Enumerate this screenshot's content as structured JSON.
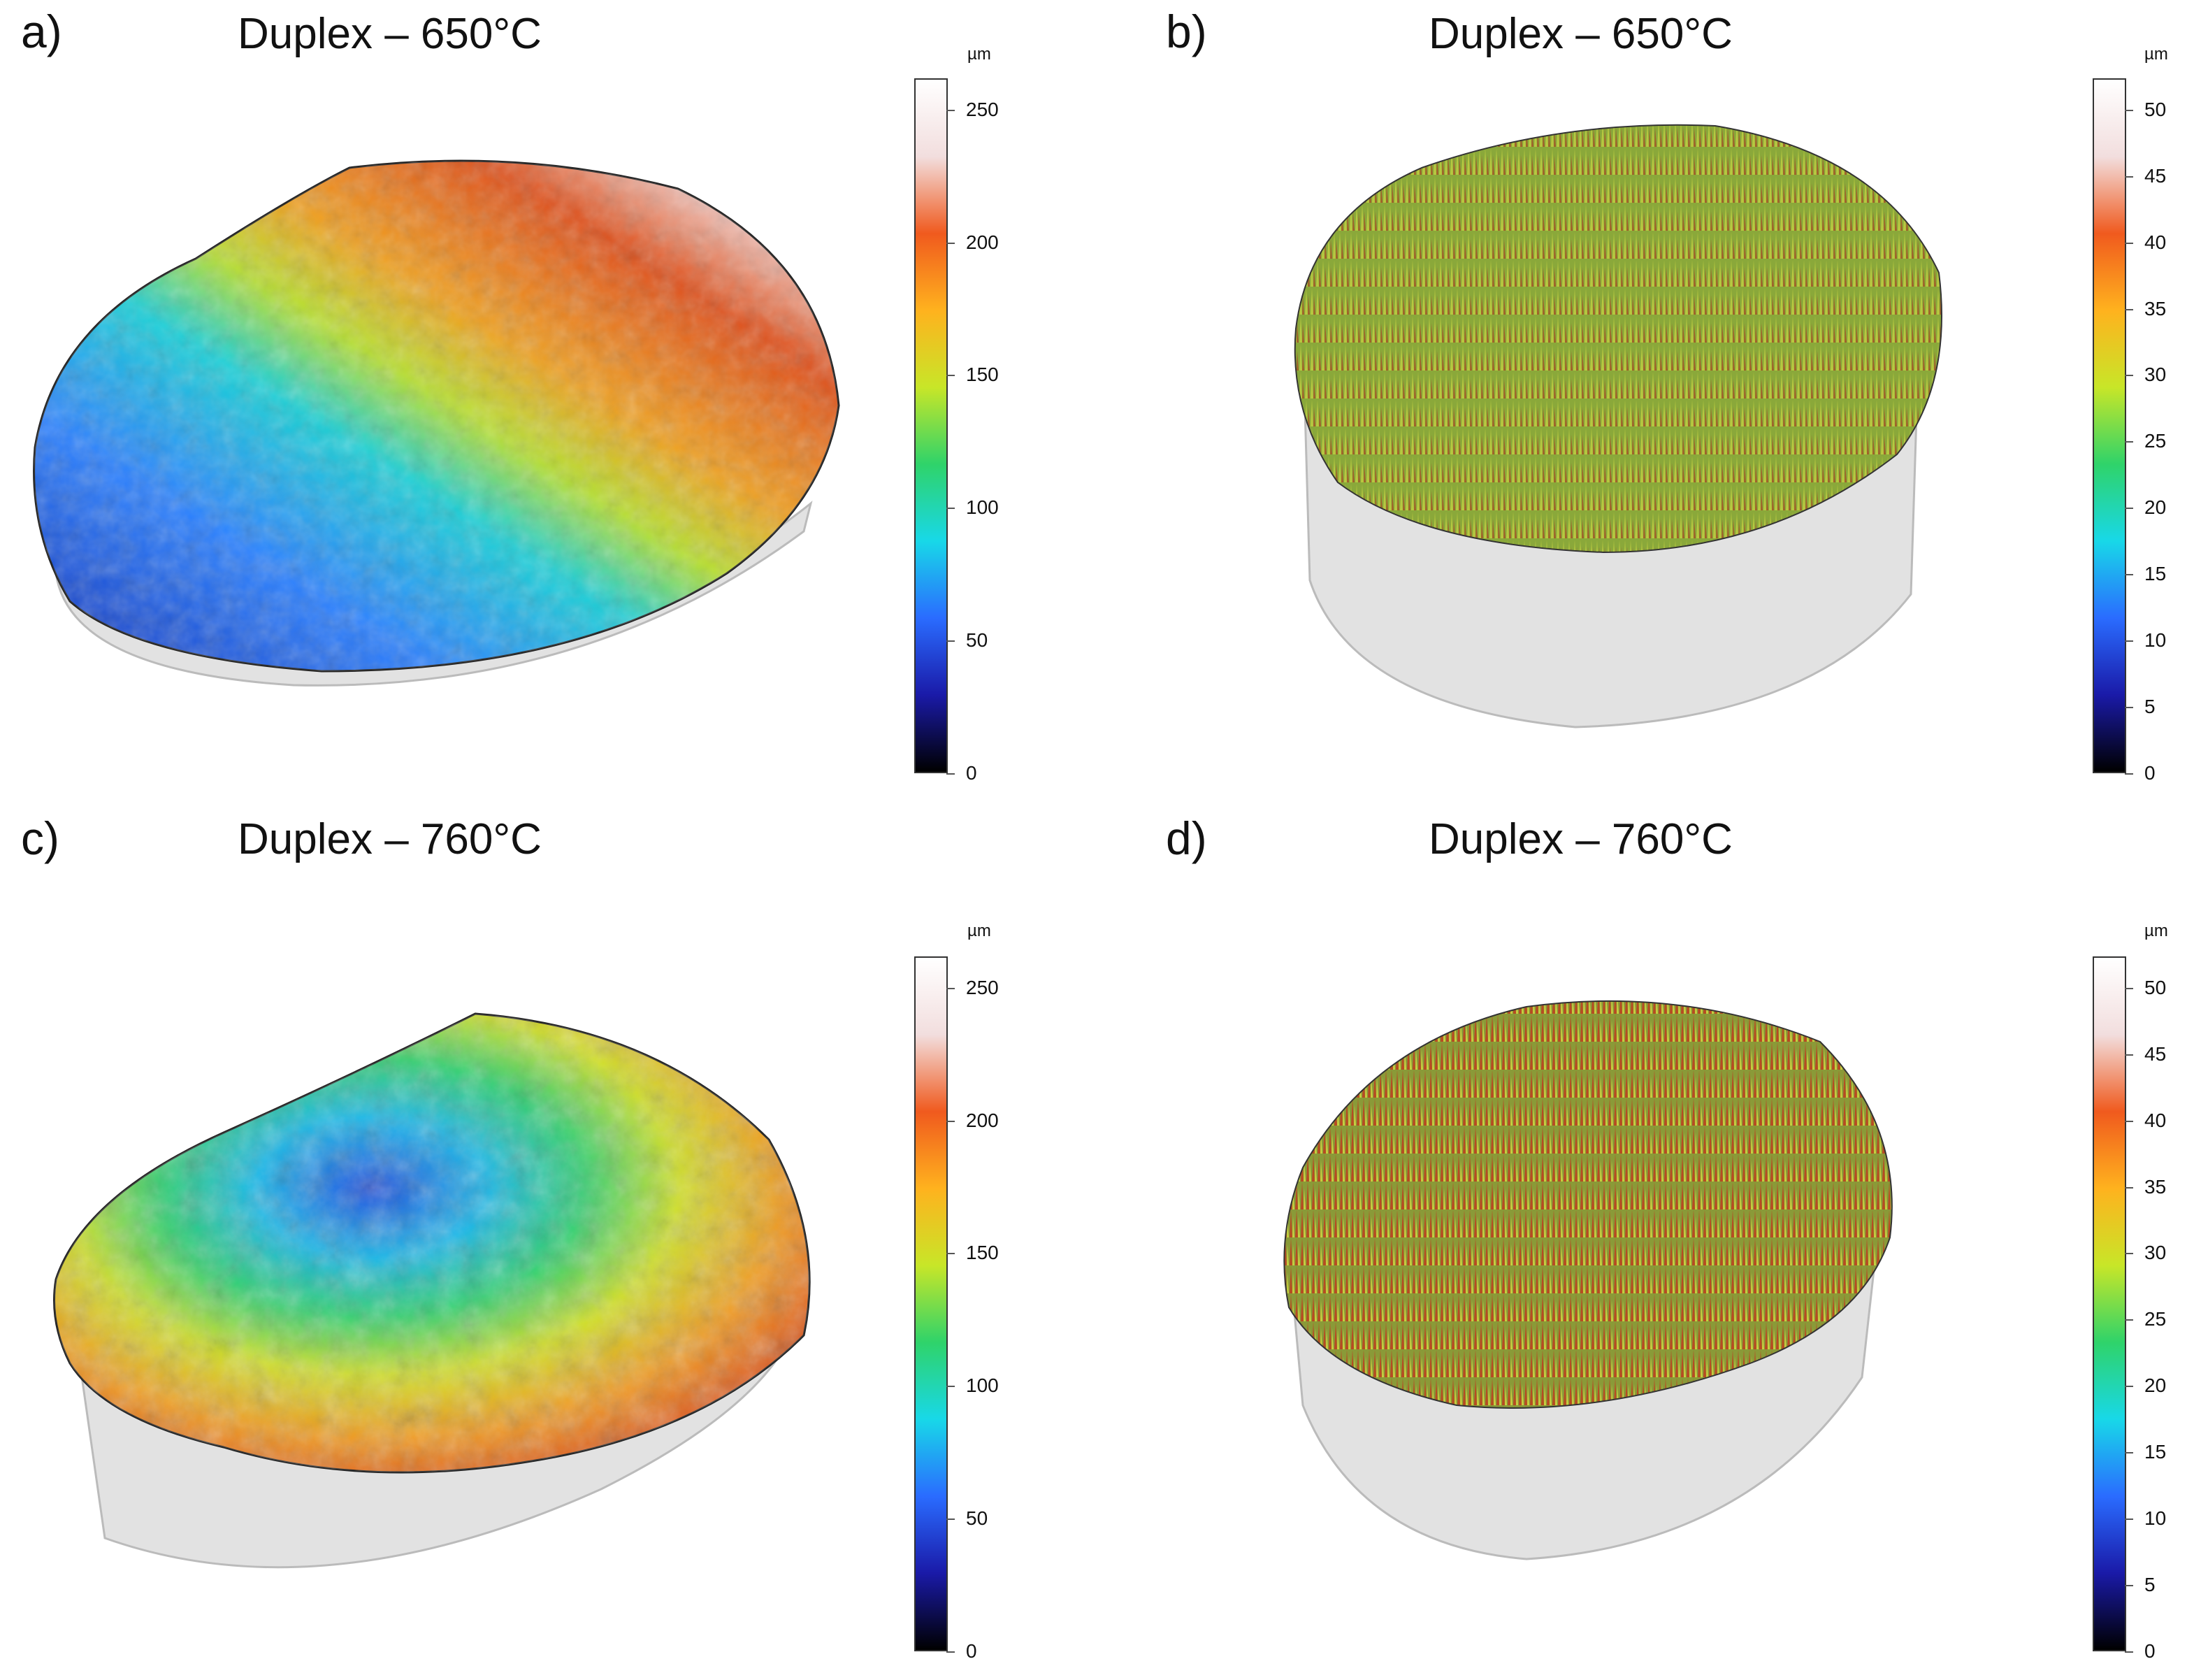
{
  "panels": [
    {
      "letter": "a)",
      "title": "Duplex – 650°C",
      "style": "smooth-rainbow",
      "colorbar": {
        "unit": "µm",
        "ticks": [
          "250",
          "200",
          "150",
          "100",
          "50",
          "0"
        ]
      }
    },
    {
      "letter": "b)",
      "title": "Duplex – 650°C",
      "style": "spiky-green",
      "colorbar": {
        "unit": "µm",
        "ticks": [
          "50",
          "45",
          "40",
          "35",
          "30",
          "25",
          "20",
          "15",
          "10",
          "5",
          "0"
        ]
      }
    },
    {
      "letter": "c)",
      "title": "Duplex – 760°C",
      "style": "bumpy-rainbow",
      "colorbar": {
        "unit": "µm",
        "ticks": [
          "250",
          "200",
          "150",
          "100",
          "50",
          "0"
        ]
      }
    },
    {
      "letter": "d)",
      "title": "Duplex – 760°C",
      "style": "spiky-orange",
      "colorbar": {
        "unit": "µm",
        "ticks": [
          "50",
          "45",
          "40",
          "35",
          "30",
          "25",
          "20",
          "15",
          "10",
          "5",
          "0"
        ]
      }
    }
  ],
  "colors": {
    "colorbar_gradient": [
      "#000000",
      "#1a1aa8",
      "#2a6cff",
      "#18d8e8",
      "#2fd36a",
      "#c8e628",
      "#ffb21e",
      "#f05a1e",
      "#f2dede",
      "#ffffff"
    ],
    "sample_base": "#e2e2e2"
  }
}
